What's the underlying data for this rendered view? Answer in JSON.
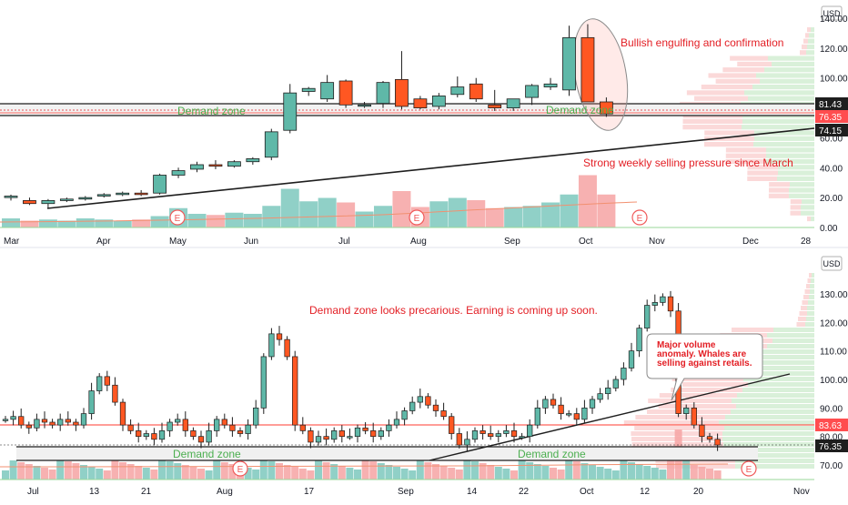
{
  "colors": {
    "up": "#26a69a",
    "upBody": "#5fb8a8",
    "down": "#ff5722",
    "downBorder": "#b43c14",
    "volUp": "#7cc8bd",
    "volDown": "#f6a3a3",
    "annotationRed": "#e31e24",
    "annotationGreen": "#4caf50",
    "trendline": "#1e1e1e",
    "priceLine": "#ff3b30",
    "badgeDark": "#1e1e1e",
    "badgeRed": "#ff4d4f"
  },
  "chart_data": [
    {
      "type": "candlestick",
      "timeframe": "weekly",
      "currency": "USD",
      "y_ticks": [
        "140.00",
        "120.00",
        "100.00",
        "80.00",
        "60.00",
        "40.00",
        "20.00",
        "0.00"
      ],
      "ylim": [
        0,
        150
      ],
      "x_labels": [
        "Mar",
        "Apr",
        "May",
        "Jun",
        "Jul",
        "Aug",
        "Sep",
        "Oct",
        "Nov",
        "Dec",
        "28"
      ],
      "candles": [
        [
          20,
          22,
          18,
          21
        ],
        [
          18,
          20,
          15,
          16
        ],
        [
          16,
          19,
          13,
          18
        ],
        [
          18,
          20,
          17,
          19
        ],
        [
          19,
          21,
          18,
          20
        ],
        [
          21,
          23,
          20,
          22
        ],
        [
          22,
          24,
          21,
          23
        ],
        [
          23,
          25,
          21,
          22
        ],
        [
          23,
          36,
          22,
          35
        ],
        [
          35,
          40,
          33,
          38
        ],
        [
          39,
          44,
          37,
          42
        ],
        [
          42,
          45,
          39,
          41
        ],
        [
          41,
          45,
          40,
          44
        ],
        [
          44,
          47,
          42,
          46
        ],
        [
          47,
          66,
          45,
          64
        ],
        [
          65,
          96,
          63,
          90
        ],
        [
          91,
          94,
          88,
          93
        ],
        [
          86,
          102,
          84,
          97
        ],
        [
          98,
          99,
          80,
          82
        ],
        [
          82,
          84,
          80,
          82
        ],
        [
          83,
          98,
          80,
          97
        ],
        [
          99,
          118,
          79,
          81
        ],
        [
          86,
          88,
          79,
          80
        ],
        [
          81,
          90,
          79,
          88
        ],
        [
          89,
          101,
          87,
          94
        ],
        [
          96,
          100,
          84,
          86
        ],
        [
          82,
          92,
          78,
          80
        ],
        [
          80,
          86,
          78,
          86
        ],
        [
          87,
          96,
          82,
          95
        ],
        [
          94,
          100,
          92,
          96
        ],
        [
          92,
          135,
          88,
          127
        ],
        [
          127,
          136,
          84,
          84
        ],
        [
          84,
          87,
          74,
          76
        ]
      ],
      "volume": [
        0.08,
        0.06,
        0.07,
        0.06,
        0.08,
        0.07,
        0.06,
        0.07,
        0.1,
        0.17,
        0.12,
        0.11,
        0.13,
        0.12,
        0.19,
        0.34,
        0.23,
        0.26,
        0.22,
        0.14,
        0.19,
        0.32,
        0.18,
        0.23,
        0.26,
        0.24,
        0.17,
        0.18,
        0.19,
        0.22,
        0.29,
        0.46,
        0.29
      ],
      "last_prices": [
        {
          "label": "81.43",
          "kind": "dark"
        },
        {
          "label": "76.35",
          "kind": "red"
        },
        {
          "label": "74.15",
          "kind": "dark"
        }
      ],
      "annotations": {
        "engulfing": "Bullish engulfing and confirmation",
        "selling": "Strong weekly selling pressure since March",
        "demand_left": "Demand zone",
        "demand_right": "Demand zone"
      },
      "earnings_marker": "E"
    },
    {
      "type": "candlestick",
      "timeframe": "daily",
      "currency": "USD",
      "y_ticks": [
        "130.00",
        "120.00",
        "110.00",
        "100.00",
        "90.00",
        "80.00",
        "70.00"
      ],
      "ylim": [
        65,
        137
      ],
      "x_labels": [
        "Jul",
        "13",
        "21",
        "Aug",
        "17",
        "Sep",
        "14",
        "22",
        "Oct",
        "12",
        "20",
        "Nov"
      ],
      "last_prices": [
        {
          "label": "83.63",
          "kind": "red"
        },
        {
          "label": "76.35",
          "kind": "dark"
        }
      ],
      "annotations": {
        "precarious": "Demand zone looks precarious.  Earning is coming up soon.",
        "volume_anomaly": "Major volume anomaly.  Whales are selling against retails.",
        "demand_left": "Demand zone",
        "demand_right": "Demand zone"
      },
      "earnings_marker": "E"
    }
  ]
}
